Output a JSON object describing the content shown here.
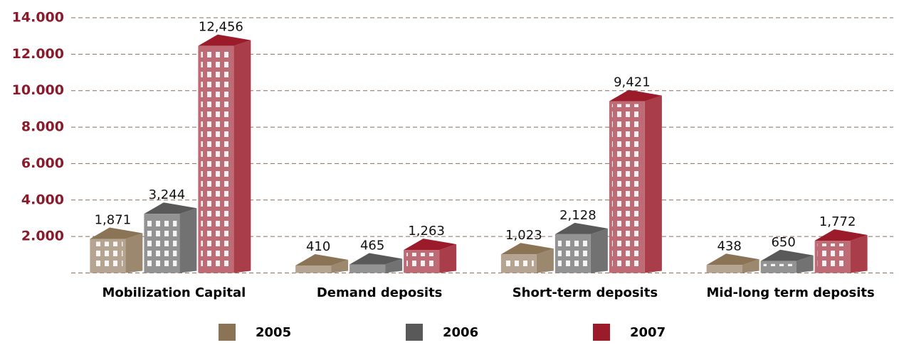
{
  "chart_data": {
    "type": "bar",
    "categories": [
      "Mobilization Capital",
      "Demand deposits",
      "Short-term deposits",
      "Mid-long term deposits"
    ],
    "series": [
      {
        "name": "2005",
        "color": "#8b7355",
        "values": [
          1871,
          410,
          1023,
          438
        ],
        "value_labels": [
          "1,871",
          "410",
          "1,023",
          "438"
        ]
      },
      {
        "name": "2006",
        "color": "#595959",
        "values": [
          3244,
          465,
          2128,
          650
        ],
        "value_labels": [
          "3,244",
          "465",
          "2,128",
          "650"
        ]
      },
      {
        "name": "2007",
        "color": "#9b1b2a",
        "values": [
          12456,
          1263,
          9421,
          1772
        ],
        "value_labels": [
          "12,456",
          "1,263",
          "9,421",
          "1,772"
        ]
      }
    ],
    "ylim": [
      0,
      14000
    ],
    "yticks": [
      {
        "value": 2000,
        "label": "2.000"
      },
      {
        "value": 4000,
        "label": "4.000"
      },
      {
        "value": 6000,
        "label": "6.000"
      },
      {
        "value": 8000,
        "label": "8.000"
      },
      {
        "value": 10000,
        "label": "10.000"
      },
      {
        "value": 12000,
        "label": "12.000"
      },
      {
        "value": 14000,
        "label": "14.000"
      }
    ],
    "grid": true
  }
}
